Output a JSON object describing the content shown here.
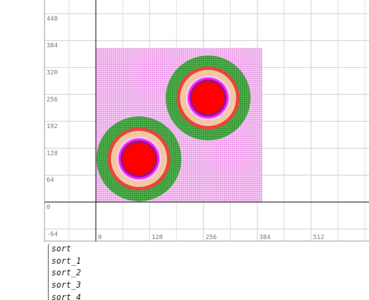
{
  "plot": {
    "xticks": [
      0,
      128,
      256,
      384,
      512
    ],
    "yticks": [
      -64,
      0,
      64,
      128,
      192,
      256,
      320,
      384,
      448
    ]
  },
  "list": [
    "sort",
    "sort_1",
    "sort_2",
    "sort_3",
    "sort_4"
  ]
}
